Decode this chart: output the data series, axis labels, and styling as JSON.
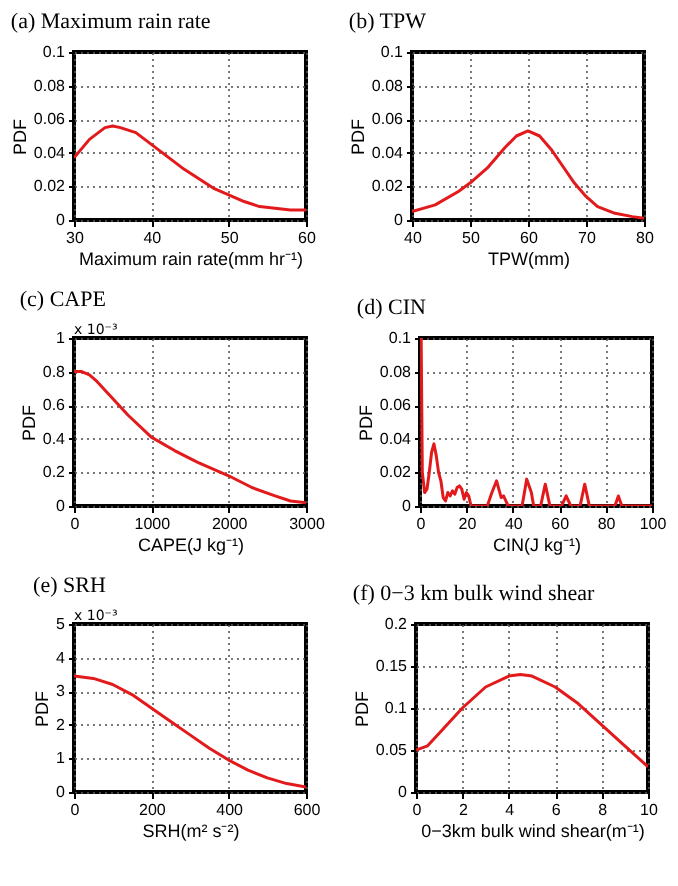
{
  "chart_data": [
    {
      "type": "line",
      "title": "(a) Maximum rain rate",
      "xlabel": "Maximum rain rate(mm hr⁻¹)",
      "ylabel": "PDF",
      "x": [
        30,
        32,
        34,
        35,
        36,
        38,
        40,
        42,
        44,
        46,
        48,
        50,
        52,
        54,
        56,
        58,
        60
      ],
      "series": [
        {
          "color": "#e31a1c",
          "values": [
            0.037,
            0.048,
            0.055,
            0.056,
            0.055,
            0.052,
            0.045,
            0.038,
            0.031,
            0.025,
            0.019,
            0.015,
            0.011,
            0.008,
            0.007,
            0.006,
            0.006
          ]
        }
      ],
      "xlim": [
        30,
        60
      ],
      "xticks": [
        30,
        40,
        50,
        60
      ],
      "ylim": [
        0,
        0.1
      ],
      "yticks": [
        0,
        0.02,
        0.04,
        0.06,
        0.08,
        0.1
      ],
      "grid": true,
      "line_style": "solid"
    },
    {
      "type": "line",
      "title": "(b) TPW",
      "xlabel": "TPW(mm)",
      "ylabel": "PDF",
      "x": [
        40,
        44,
        48,
        50,
        53,
        56,
        58,
        60,
        62,
        64,
        66,
        68,
        70,
        72,
        75,
        78,
        80
      ],
      "series": [
        {
          "color": "#e31a1c",
          "values": [
            0.005,
            0.009,
            0.017,
            0.022,
            0.031,
            0.043,
            0.05,
            0.053,
            0.05,
            0.042,
            0.032,
            0.022,
            0.014,
            0.008,
            0.004,
            0.002,
            0.001
          ]
        }
      ],
      "xlim": [
        40,
        80
      ],
      "xticks": [
        40,
        50,
        60,
        70,
        80
      ],
      "ylim": [
        0,
        0.1
      ],
      "yticks": [
        0,
        0.02,
        0.04,
        0.06,
        0.08,
        0.1
      ],
      "grid": true,
      "line_style": "solid"
    },
    {
      "type": "line",
      "title": "(c) CAPE",
      "xlabel": "CAPE(J kg⁻¹)",
      "ylabel": "PDF",
      "annotations": [
        "x 10⁻³"
      ],
      "x": [
        0,
        100,
        200,
        300,
        500,
        700,
        1000,
        1300,
        1600,
        2000,
        2300,
        2600,
        2800,
        3000
      ],
      "series": [
        {
          "color": "#e31a1c",
          "values": [
            0.8,
            0.8,
            0.78,
            0.74,
            0.64,
            0.54,
            0.41,
            0.33,
            0.26,
            0.18,
            0.11,
            0.06,
            0.03,
            0.02
          ]
        }
      ],
      "xlim": [
        0,
        3000
      ],
      "xticks": [
        0,
        1000,
        2000,
        3000
      ],
      "ylim": [
        0,
        1
      ],
      "yticks": [
        0,
        0.2,
        0.4,
        0.6,
        0.8,
        1
      ],
      "grid": true,
      "line_style": "solid"
    },
    {
      "type": "line",
      "title": "(d) CIN",
      "xlabel": "CIN(J kg⁻¹)",
      "ylabel": "PDF",
      "x": [
        0,
        0.5,
        1,
        2,
        3,
        4,
        5,
        6,
        7,
        8,
        9,
        10,
        11,
        12,
        13,
        14,
        15,
        16,
        17,
        18,
        19,
        20,
        21,
        22,
        29,
        31,
        33,
        35,
        36,
        37,
        38,
        44,
        46,
        48,
        49,
        52,
        54,
        56,
        61,
        63,
        65,
        69,
        71,
        73,
        84,
        85.5,
        87,
        100
      ],
      "series": [
        {
          "color": "#e31a1c",
          "values": [
            0.1,
            0.1,
            0.02,
            0.008,
            0.01,
            0.02,
            0.032,
            0.037,
            0.03,
            0.02,
            0.015,
            0.005,
            0.003,
            0.008,
            0.006,
            0.009,
            0.007,
            0.011,
            0.012,
            0.01,
            0.004,
            0.008,
            0.006,
            0,
            0,
            0.008,
            0.015,
            0.005,
            0.006,
            0.003,
            0,
            0,
            0.016,
            0.008,
            0,
            0,
            0.013,
            0,
            0,
            0.006,
            0,
            0,
            0.013,
            0,
            0,
            0.006,
            0,
            0
          ]
        }
      ],
      "xlim": [
        0,
        100
      ],
      "xticks": [
        0,
        20,
        40,
        60,
        80,
        100
      ],
      "ylim": [
        0,
        0.1
      ],
      "yticks": [
        0,
        0.02,
        0.04,
        0.06,
        0.08,
        0.1
      ],
      "grid": true,
      "line_style": "solid"
    },
    {
      "type": "line",
      "title": "(e) SRH",
      "xlabel": "SRH(m² s⁻²)",
      "ylabel": "PDF",
      "annotations": [
        "x 10⁻³"
      ],
      "x": [
        0,
        50,
        100,
        150,
        200,
        250,
        300,
        350,
        400,
        450,
        500,
        550,
        600
      ],
      "series": [
        {
          "color": "#e31a1c",
          "values": [
            3.45,
            3.38,
            3.2,
            2.9,
            2.5,
            2.1,
            1.7,
            1.3,
            0.95,
            0.65,
            0.42,
            0.25,
            0.15
          ]
        }
      ],
      "xlim": [
        0,
        600
      ],
      "xticks": [
        0,
        200,
        400,
        600
      ],
      "ylim": [
        0,
        5
      ],
      "yticks": [
        0,
        1,
        2,
        3,
        4,
        5
      ],
      "grid": true,
      "line_style": "solid"
    },
    {
      "type": "line",
      "title": "(f) 0−3 km bulk wind shear",
      "xlabel": "0−3km bulk wind shear(m⁻¹)",
      "ylabel": "PDF",
      "x": [
        0,
        0.5,
        1,
        2,
        3,
        4,
        4.5,
        5,
        6,
        7,
        8,
        9,
        10
      ],
      "series": [
        {
          "color": "#e31a1c",
          "values": [
            0.05,
            0.055,
            0.07,
            0.1,
            0.125,
            0.138,
            0.14,
            0.138,
            0.125,
            0.105,
            0.08,
            0.055,
            0.03
          ]
        }
      ],
      "xlim": [
        0,
        10
      ],
      "xticks": [
        0,
        2,
        4,
        6,
        8,
        10
      ],
      "ylim": [
        0,
        0.2
      ],
      "yticks": [
        0,
        0.05,
        0.1,
        0.15,
        0.2
      ],
      "grid": true,
      "line_style": "solid"
    }
  ]
}
